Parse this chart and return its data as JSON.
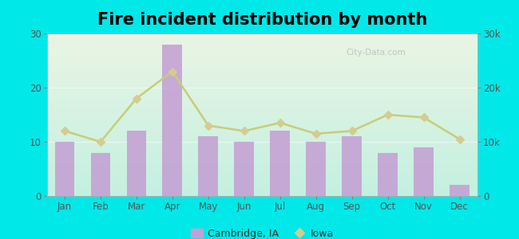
{
  "title": "Fire incident distribution by month",
  "months": [
    "Jan",
    "Feb",
    "Mar",
    "Apr",
    "May",
    "Jun",
    "Jul",
    "Aug",
    "Sep",
    "Oct",
    "Nov",
    "Dec"
  ],
  "cambridge_values": [
    10,
    8,
    12,
    28,
    11,
    10,
    12,
    10,
    11,
    8,
    9,
    2
  ],
  "iowa_values": [
    12000,
    10000,
    18000,
    23000,
    13000,
    12000,
    13500,
    11500,
    12000,
    15000,
    14500,
    10500
  ],
  "bar_color": "#c4a0d4",
  "line_color": "#c8cc7a",
  "line_marker_color": "#d4cc90",
  "background_color": "#00e8e8",
  "grad_top": "#eaf5e4",
  "grad_bottom": "#c4f0e0",
  "left_ylim": [
    0,
    30
  ],
  "right_ylim": [
    0,
    30000
  ],
  "left_yticks": [
    0,
    10,
    20,
    30
  ],
  "right_yticks": [
    0,
    10000,
    20000,
    30000
  ],
  "right_yticklabels": [
    "0",
    "10k",
    "20k",
    "30k"
  ],
  "title_fontsize": 15,
  "tick_label_color": "#555555",
  "watermark": "City-Data.com",
  "legend_cambridge": "Cambridge, IA",
  "legend_iowa": "Iowa"
}
